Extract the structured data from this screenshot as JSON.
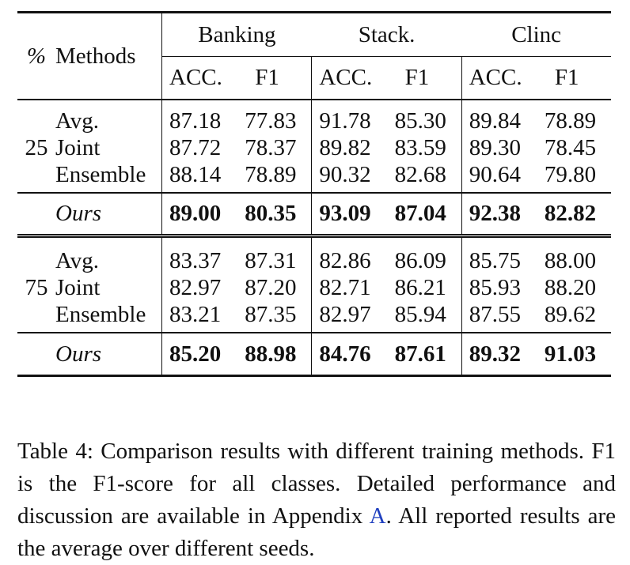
{
  "header": {
    "pct": "%",
    "methods": "Methods",
    "groups": [
      "Banking",
      "Stack.",
      "Clinc"
    ],
    "subcols": [
      "ACC.",
      "F1",
      "ACC.",
      "F1",
      "ACC.",
      "F1"
    ]
  },
  "blocks": [
    {
      "pct": "25",
      "rows": [
        {
          "method": "Avg.",
          "values": [
            "87.18",
            "77.83",
            "91.78",
            "85.30",
            "89.84",
            "78.89"
          ]
        },
        {
          "method": "Joint",
          "values": [
            "87.72",
            "78.37",
            "89.82",
            "83.59",
            "89.30",
            "78.45"
          ]
        },
        {
          "method": "Ensemble",
          "values": [
            "88.14",
            "78.89",
            "90.32",
            "82.68",
            "90.64",
            "79.80"
          ]
        }
      ],
      "ours": {
        "method": "Ours",
        "values": [
          "89.00",
          "80.35",
          "93.09",
          "87.04",
          "92.38",
          "82.82"
        ]
      }
    },
    {
      "pct": "75",
      "rows": [
        {
          "method": "Avg.",
          "values": [
            "83.37",
            "87.31",
            "82.86",
            "86.09",
            "85.75",
            "88.00"
          ]
        },
        {
          "method": "Joint",
          "values": [
            "82.97",
            "87.20",
            "82.71",
            "86.21",
            "85.93",
            "88.20"
          ]
        },
        {
          "method": "Ensemble",
          "values": [
            "83.21",
            "87.35",
            "82.97",
            "85.94",
            "87.55",
            "89.62"
          ]
        }
      ],
      "ours": {
        "method": "Ours",
        "values": [
          "85.20",
          "88.98",
          "84.76",
          "87.61",
          "89.32",
          "91.03"
        ]
      }
    }
  ],
  "caption": {
    "text_before_ref": "Table 4: Comparison results with different training methods. F1 is the F1-score for all classes. Detailed performance and discussion are available in Appendix ",
    "ref": "A",
    "text_after_ref": ". All reported results are the average over different seeds."
  }
}
